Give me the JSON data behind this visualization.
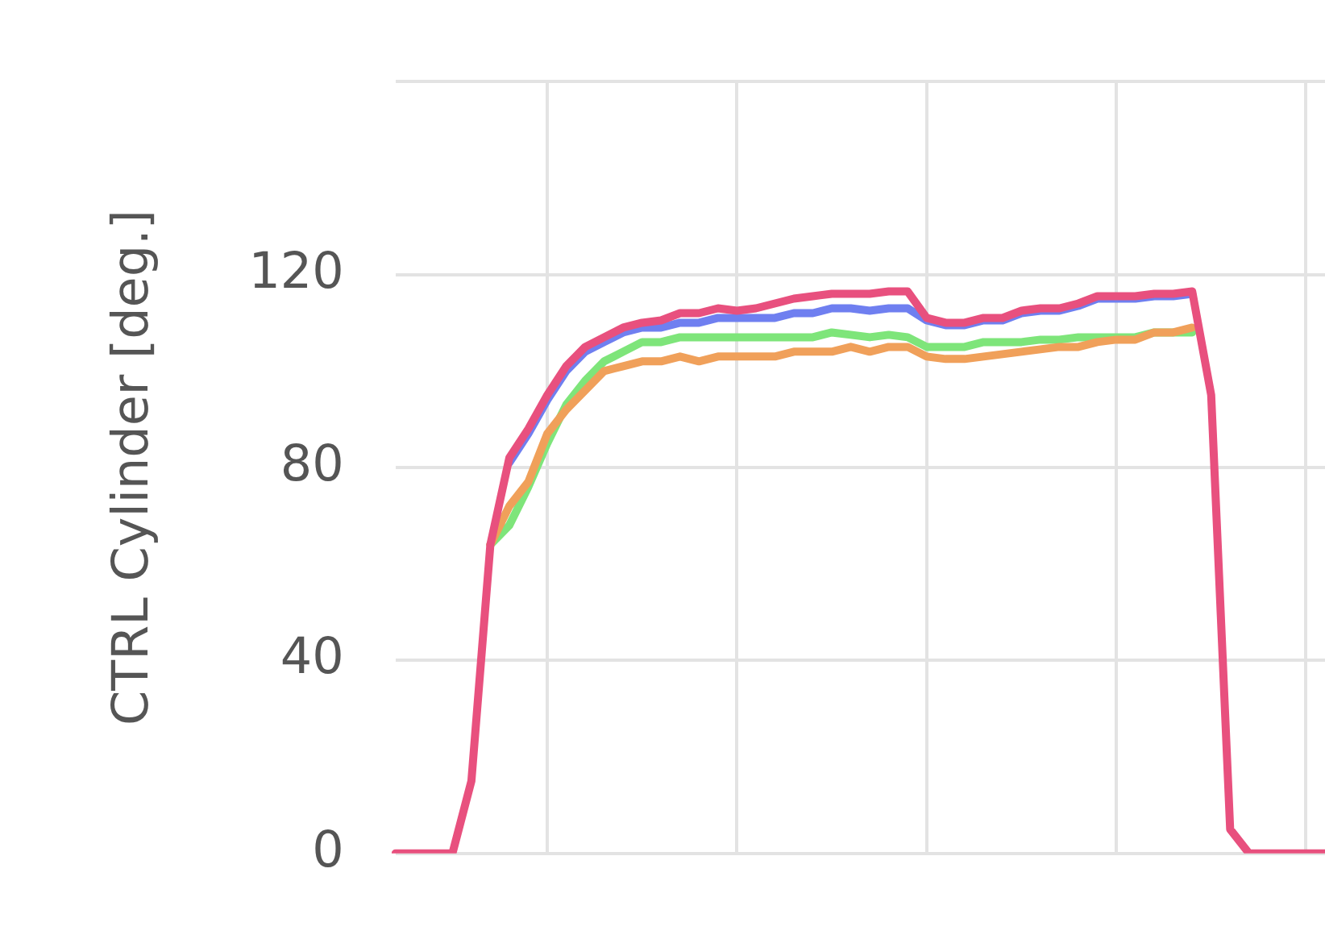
{
  "chart_data": {
    "type": "line",
    "ylabel": "CTRL Cylinder [deg.]",
    "categories": [
      null,
      null,
      null,
      null,
      null,
      null,
      null,
      null,
      null,
      null,
      null,
      null,
      null,
      null,
      null,
      null,
      null,
      null,
      null,
      null,
      null,
      null,
      null,
      null,
      null,
      null,
      null,
      null,
      null,
      null,
      null,
      null,
      null,
      null,
      null,
      null,
      null,
      null,
      null,
      null,
      null,
      null,
      null,
      null,
      null,
      null,
      null,
      null,
      null,
      null
    ],
    "ylim": [
      0,
      160
    ],
    "yticks": [
      0,
      40,
      80,
      120,
      {
        "value": 160,
        "label": null
      }
    ],
    "grid": true,
    "legend": false,
    "series": [
      {
        "color": "#6f7ff0",
        "values": [
          null,
          null,
          null,
          null,
          null,
          null,
          81,
          87,
          94,
          100,
          104,
          106,
          108,
          109,
          109,
          110,
          110,
          111,
          111,
          111,
          111,
          112,
          112,
          113,
          113,
          112.5,
          113,
          113,
          110.5,
          109.5,
          109.5,
          110.5,
          110.5,
          112,
          112.5,
          112.5,
          113.5,
          115,
          115,
          115,
          115.5,
          115.5,
          116,
          null,
          null,
          null,
          null,
          null,
          null,
          null
        ]
      },
      {
        "color": "#7ee57a",
        "values": [
          null,
          null,
          null,
          null,
          null,
          64,
          68,
          76,
          85,
          93,
          98,
          102,
          104,
          106,
          106,
          107,
          107,
          107,
          107,
          107,
          107,
          107,
          107,
          108,
          107.5,
          107,
          107.5,
          107,
          105,
          105,
          105,
          106,
          106,
          106,
          106.5,
          106.5,
          107,
          107,
          107,
          107,
          108,
          108,
          108,
          null,
          null,
          null,
          null,
          null,
          null,
          null
        ]
      },
      {
        "color": "#f0a05a",
        "values": [
          null,
          null,
          null,
          null,
          null,
          64,
          72,
          77,
          87,
          92,
          96,
          100,
          101,
          102,
          102,
          103,
          102,
          103,
          103,
          103,
          103,
          104,
          104,
          104,
          105,
          104,
          105,
          105,
          103,
          102.5,
          102.5,
          103,
          103.5,
          104,
          104.5,
          105,
          105,
          106,
          106.5,
          106.5,
          108,
          108,
          109,
          null,
          null,
          null,
          null,
          null,
          null,
          null
        ]
      },
      {
        "color": "#e8507e",
        "values": [
          0,
          0,
          0,
          0,
          15,
          64,
          82,
          88,
          95,
          101,
          105,
          107,
          109,
          110,
          110.5,
          112,
          112,
          113,
          112.5,
          113,
          114,
          115,
          115.5,
          116,
          116,
          116,
          116.5,
          116.5,
          111,
          110,
          110,
          111,
          111,
          112.5,
          113,
          113,
          114,
          115.5,
          115.5,
          115.5,
          116,
          116,
          116.5,
          95,
          5,
          0,
          0,
          0,
          0,
          0
        ]
      }
    ]
  }
}
